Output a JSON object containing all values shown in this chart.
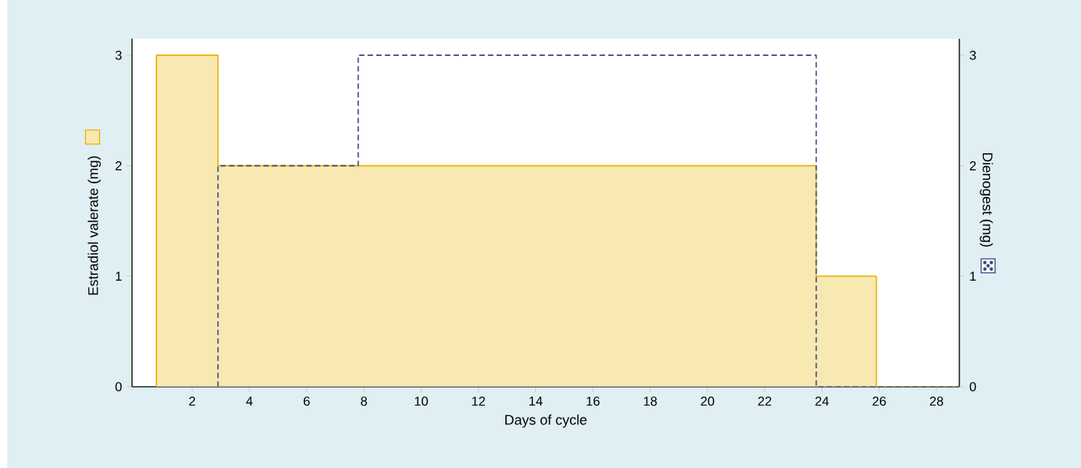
{
  "chart_data": {
    "type": "area",
    "xlabel": "Days of cycle",
    "ylabel": "Estradiol valerate (mg)",
    "y2label": "Dienogest (mg)",
    "series": [
      {
        "color": "#e8b400",
        "x": [
          0.75,
          0.75,
          2.9,
          2.9,
          23.8,
          23.8,
          25.9,
          25.9,
          28.8
        ],
        "values": [
          0,
          3,
          3,
          2,
          2,
          1,
          1,
          0,
          0
        ]
      },
      {
        "type": "line",
        "color": "#3b4a85",
        "axis": "y2",
        "line_style": "dashed",
        "x": [
          2.9,
          2.9,
          7.8,
          7.8,
          23.8,
          23.8,
          28.8
        ],
        "values": [
          0,
          2,
          2,
          3,
          3,
          0,
          0
        ]
      }
    ],
    "xlim": [
      -0.1,
      28.8
    ],
    "xticks": [
      2,
      4,
      6,
      8,
      10,
      12,
      14,
      16,
      18,
      20,
      22,
      24,
      26,
      28
    ],
    "ylim": [
      0,
      3.15
    ],
    "yticks": [
      0,
      1,
      2,
      3
    ],
    "y2lim": [
      0,
      3.15
    ],
    "y2ticks": [
      0,
      1,
      2,
      3
    ]
  }
}
